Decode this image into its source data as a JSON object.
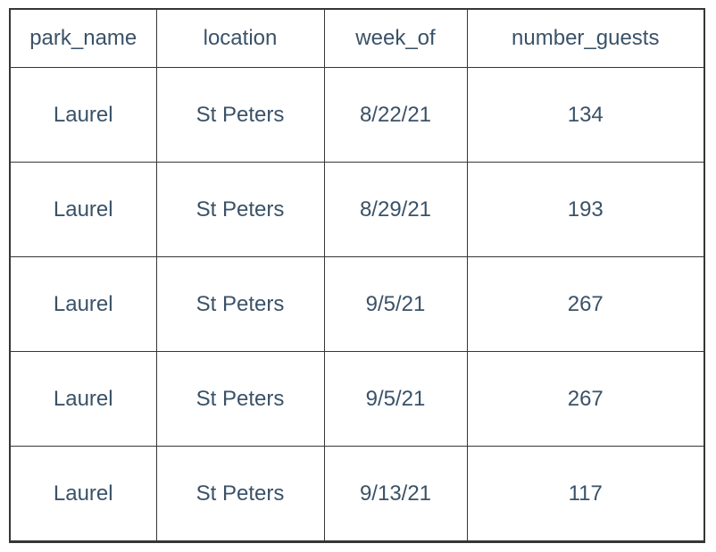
{
  "table": {
    "columns": [
      {
        "key": "park_name",
        "label": "park_name"
      },
      {
        "key": "location",
        "label": "location"
      },
      {
        "key": "week_of",
        "label": "week_of"
      },
      {
        "key": "number_guests",
        "label": "number_guests"
      }
    ],
    "rows": [
      {
        "park_name": "Laurel",
        "location": "St Peters",
        "week_of": "8/22/21",
        "number_guests": "134"
      },
      {
        "park_name": "Laurel",
        "location": "St Peters",
        "week_of": "8/29/21",
        "number_guests": "193"
      },
      {
        "park_name": "Laurel",
        "location": "St Peters",
        "week_of": "9/5/21",
        "number_guests": "267"
      },
      {
        "park_name": "Laurel",
        "location": "St Peters",
        "week_of": "9/5/21",
        "number_guests": "267"
      },
      {
        "park_name": "Laurel",
        "location": "St Peters",
        "week_of": "9/13/21",
        "number_guests": "117"
      }
    ],
    "colors": {
      "text": "#3a5268",
      "border": "#363636",
      "background": "#ffffff"
    }
  }
}
